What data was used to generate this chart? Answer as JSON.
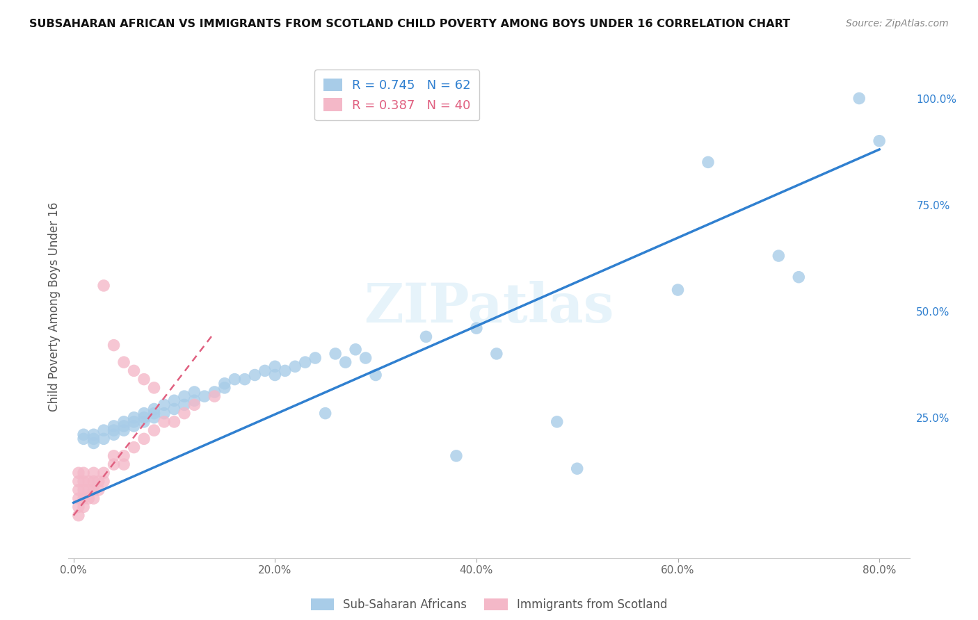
{
  "title": "SUBSAHARAN AFRICAN VS IMMIGRANTS FROM SCOTLAND CHILD POVERTY AMONG BOYS UNDER 16 CORRELATION CHART",
  "source": "Source: ZipAtlas.com",
  "ylabel": "Child Poverty Among Boys Under 16",
  "x_tick_labels": [
    "0.0%",
    "",
    "",
    "",
    "",
    "20.0%",
    "",
    "",
    "",
    "",
    "40.0%",
    "",
    "",
    "",
    "",
    "60.0%",
    "",
    "",
    "",
    "",
    "80.0%"
  ],
  "x_tick_vals": [
    0.0,
    0.04,
    0.08,
    0.12,
    0.16,
    0.2,
    0.24,
    0.28,
    0.32,
    0.36,
    0.4,
    0.44,
    0.48,
    0.52,
    0.56,
    0.6,
    0.64,
    0.68,
    0.72,
    0.76,
    0.8
  ],
  "x_tick_major": [
    0.0,
    0.2,
    0.4,
    0.6,
    0.8
  ],
  "x_tick_major_labels": [
    "0.0%",
    "20.0%",
    "40.0%",
    "60.0%",
    "80.0%"
  ],
  "y_tick_labels_right": [
    "25.0%",
    "50.0%",
    "75.0%",
    "100.0%"
  ],
  "y_tick_vals": [
    0.25,
    0.5,
    0.75,
    1.0
  ],
  "xlim": [
    -0.005,
    0.83
  ],
  "ylim": [
    -0.08,
    1.1
  ],
  "blue_R": 0.745,
  "blue_N": 62,
  "pink_R": 0.387,
  "pink_N": 40,
  "blue_scatter_x": [
    0.01,
    0.01,
    0.02,
    0.02,
    0.02,
    0.03,
    0.03,
    0.04,
    0.04,
    0.04,
    0.05,
    0.05,
    0.05,
    0.06,
    0.06,
    0.06,
    0.07,
    0.07,
    0.07,
    0.08,
    0.08,
    0.08,
    0.09,
    0.09,
    0.1,
    0.1,
    0.11,
    0.11,
    0.12,
    0.12,
    0.13,
    0.14,
    0.15,
    0.15,
    0.16,
    0.17,
    0.18,
    0.19,
    0.2,
    0.2,
    0.21,
    0.22,
    0.23,
    0.24,
    0.25,
    0.26,
    0.27,
    0.28,
    0.29,
    0.3,
    0.35,
    0.38,
    0.4,
    0.42,
    0.48,
    0.5,
    0.6,
    0.63,
    0.7,
    0.72,
    0.78,
    0.8
  ],
  "blue_scatter_y": [
    0.2,
    0.21,
    0.19,
    0.2,
    0.21,
    0.2,
    0.22,
    0.21,
    0.22,
    0.23,
    0.22,
    0.23,
    0.24,
    0.23,
    0.24,
    0.25,
    0.24,
    0.25,
    0.26,
    0.25,
    0.26,
    0.27,
    0.26,
    0.28,
    0.27,
    0.29,
    0.28,
    0.3,
    0.29,
    0.31,
    0.3,
    0.31,
    0.32,
    0.33,
    0.34,
    0.34,
    0.35,
    0.36,
    0.37,
    0.35,
    0.36,
    0.37,
    0.38,
    0.39,
    0.26,
    0.4,
    0.38,
    0.41,
    0.39,
    0.35,
    0.44,
    0.16,
    0.46,
    0.4,
    0.24,
    0.13,
    0.55,
    0.85,
    0.63,
    0.58,
    1.0,
    0.9
  ],
  "pink_scatter_x": [
    0.005,
    0.005,
    0.005,
    0.005,
    0.005,
    0.005,
    0.01,
    0.01,
    0.01,
    0.01,
    0.01,
    0.015,
    0.015,
    0.015,
    0.02,
    0.02,
    0.02,
    0.02,
    0.025,
    0.025,
    0.03,
    0.03,
    0.04,
    0.04,
    0.05,
    0.05,
    0.06,
    0.07,
    0.08,
    0.09,
    0.1,
    0.11,
    0.12,
    0.14,
    0.03,
    0.04,
    0.05,
    0.06,
    0.07,
    0.08
  ],
  "pink_scatter_y": [
    0.02,
    0.04,
    0.06,
    0.08,
    0.1,
    0.12,
    0.04,
    0.06,
    0.08,
    0.1,
    0.12,
    0.06,
    0.08,
    0.1,
    0.06,
    0.08,
    0.1,
    0.12,
    0.08,
    0.1,
    0.1,
    0.12,
    0.14,
    0.16,
    0.14,
    0.16,
    0.18,
    0.2,
    0.22,
    0.24,
    0.24,
    0.26,
    0.28,
    0.3,
    0.56,
    0.42,
    0.38,
    0.36,
    0.34,
    0.32
  ],
  "blue_line_x": [
    0.0,
    0.8
  ],
  "blue_line_y": [
    0.05,
    0.88
  ],
  "pink_line_x": [
    0.0,
    0.14
  ],
  "pink_line_y": [
    0.02,
    0.45
  ],
  "blue_color": "#a8cce8",
  "pink_color": "#f4b8c8",
  "blue_line_color": "#3080d0",
  "pink_line_color": "#e06080",
  "watermark": "ZIPatlas",
  "legend_label_blue": "Sub-Saharan Africans",
  "legend_label_pink": "Immigrants from Scotland",
  "background_color": "#ffffff",
  "grid_color": "#dddddd"
}
